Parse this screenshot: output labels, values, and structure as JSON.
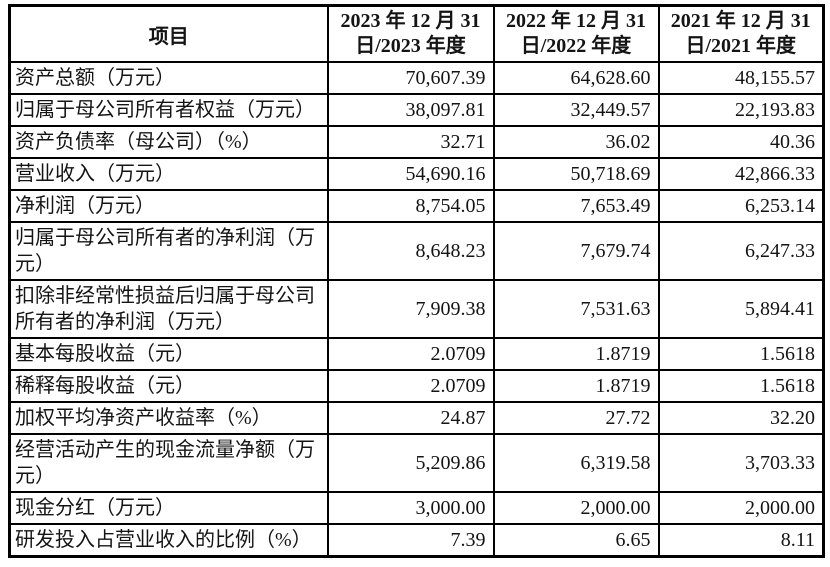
{
  "table": {
    "colors": {
      "border": "#000000",
      "text": "#141414",
      "background": "#ffffff"
    },
    "header": {
      "item_label": "项目",
      "periods": [
        {
          "line1": "2023 年 12 月 31",
          "line2": "日/2023 年度"
        },
        {
          "line1": "2022 年 12 月 31",
          "line2": "日/2022 年度"
        },
        {
          "line1": "2021 年 12 月 31",
          "line2": "日/2021 年度"
        }
      ]
    },
    "rows": [
      {
        "item": "资产总额（万元）",
        "values": [
          "70,607.39",
          "64,628.60",
          "48,155.57"
        ]
      },
      {
        "item": "归属于母公司所有者权益（万元）",
        "values": [
          "38,097.81",
          "32,449.57",
          "22,193.83"
        ]
      },
      {
        "item": "资产负债率（母公司）（%）",
        "values": [
          "32.71",
          "36.02",
          "40.36"
        ]
      },
      {
        "item": "营业收入（万元）",
        "values": [
          "54,690.16",
          "50,718.69",
          "42,866.33"
        ]
      },
      {
        "item": "净利润（万元）",
        "values": [
          "8,754.05",
          "7,653.49",
          "6,253.14"
        ]
      },
      {
        "item": "归属于母公司所有者的净利润（万元）",
        "values": [
          "8,648.23",
          "7,679.74",
          "6,247.33"
        ]
      },
      {
        "item": "扣除非经常性损益后归属于母公司所有者的净利润（万元）",
        "values": [
          "7,909.38",
          "7,531.63",
          "5,894.41"
        ]
      },
      {
        "item": "基本每股收益（元）",
        "values": [
          "2.0709",
          "1.8719",
          "1.5618"
        ]
      },
      {
        "item": "稀释每股收益（元）",
        "values": [
          "2.0709",
          "1.8719",
          "1.5618"
        ]
      },
      {
        "item": "加权平均净资产收益率（%）",
        "values": [
          "24.87",
          "27.72",
          "32.20"
        ]
      },
      {
        "item": "经营活动产生的现金流量净额（万元）",
        "values": [
          "5,209.86",
          "6,319.58",
          "3,703.33"
        ]
      },
      {
        "item": "现金分红（万元）",
        "values": [
          "3,000.00",
          "2,000.00",
          "2,000.00"
        ]
      },
      {
        "item": "研发投入占营业收入的比例（%）",
        "values": [
          "7.39",
          "6.65",
          "8.11"
        ]
      }
    ]
  }
}
